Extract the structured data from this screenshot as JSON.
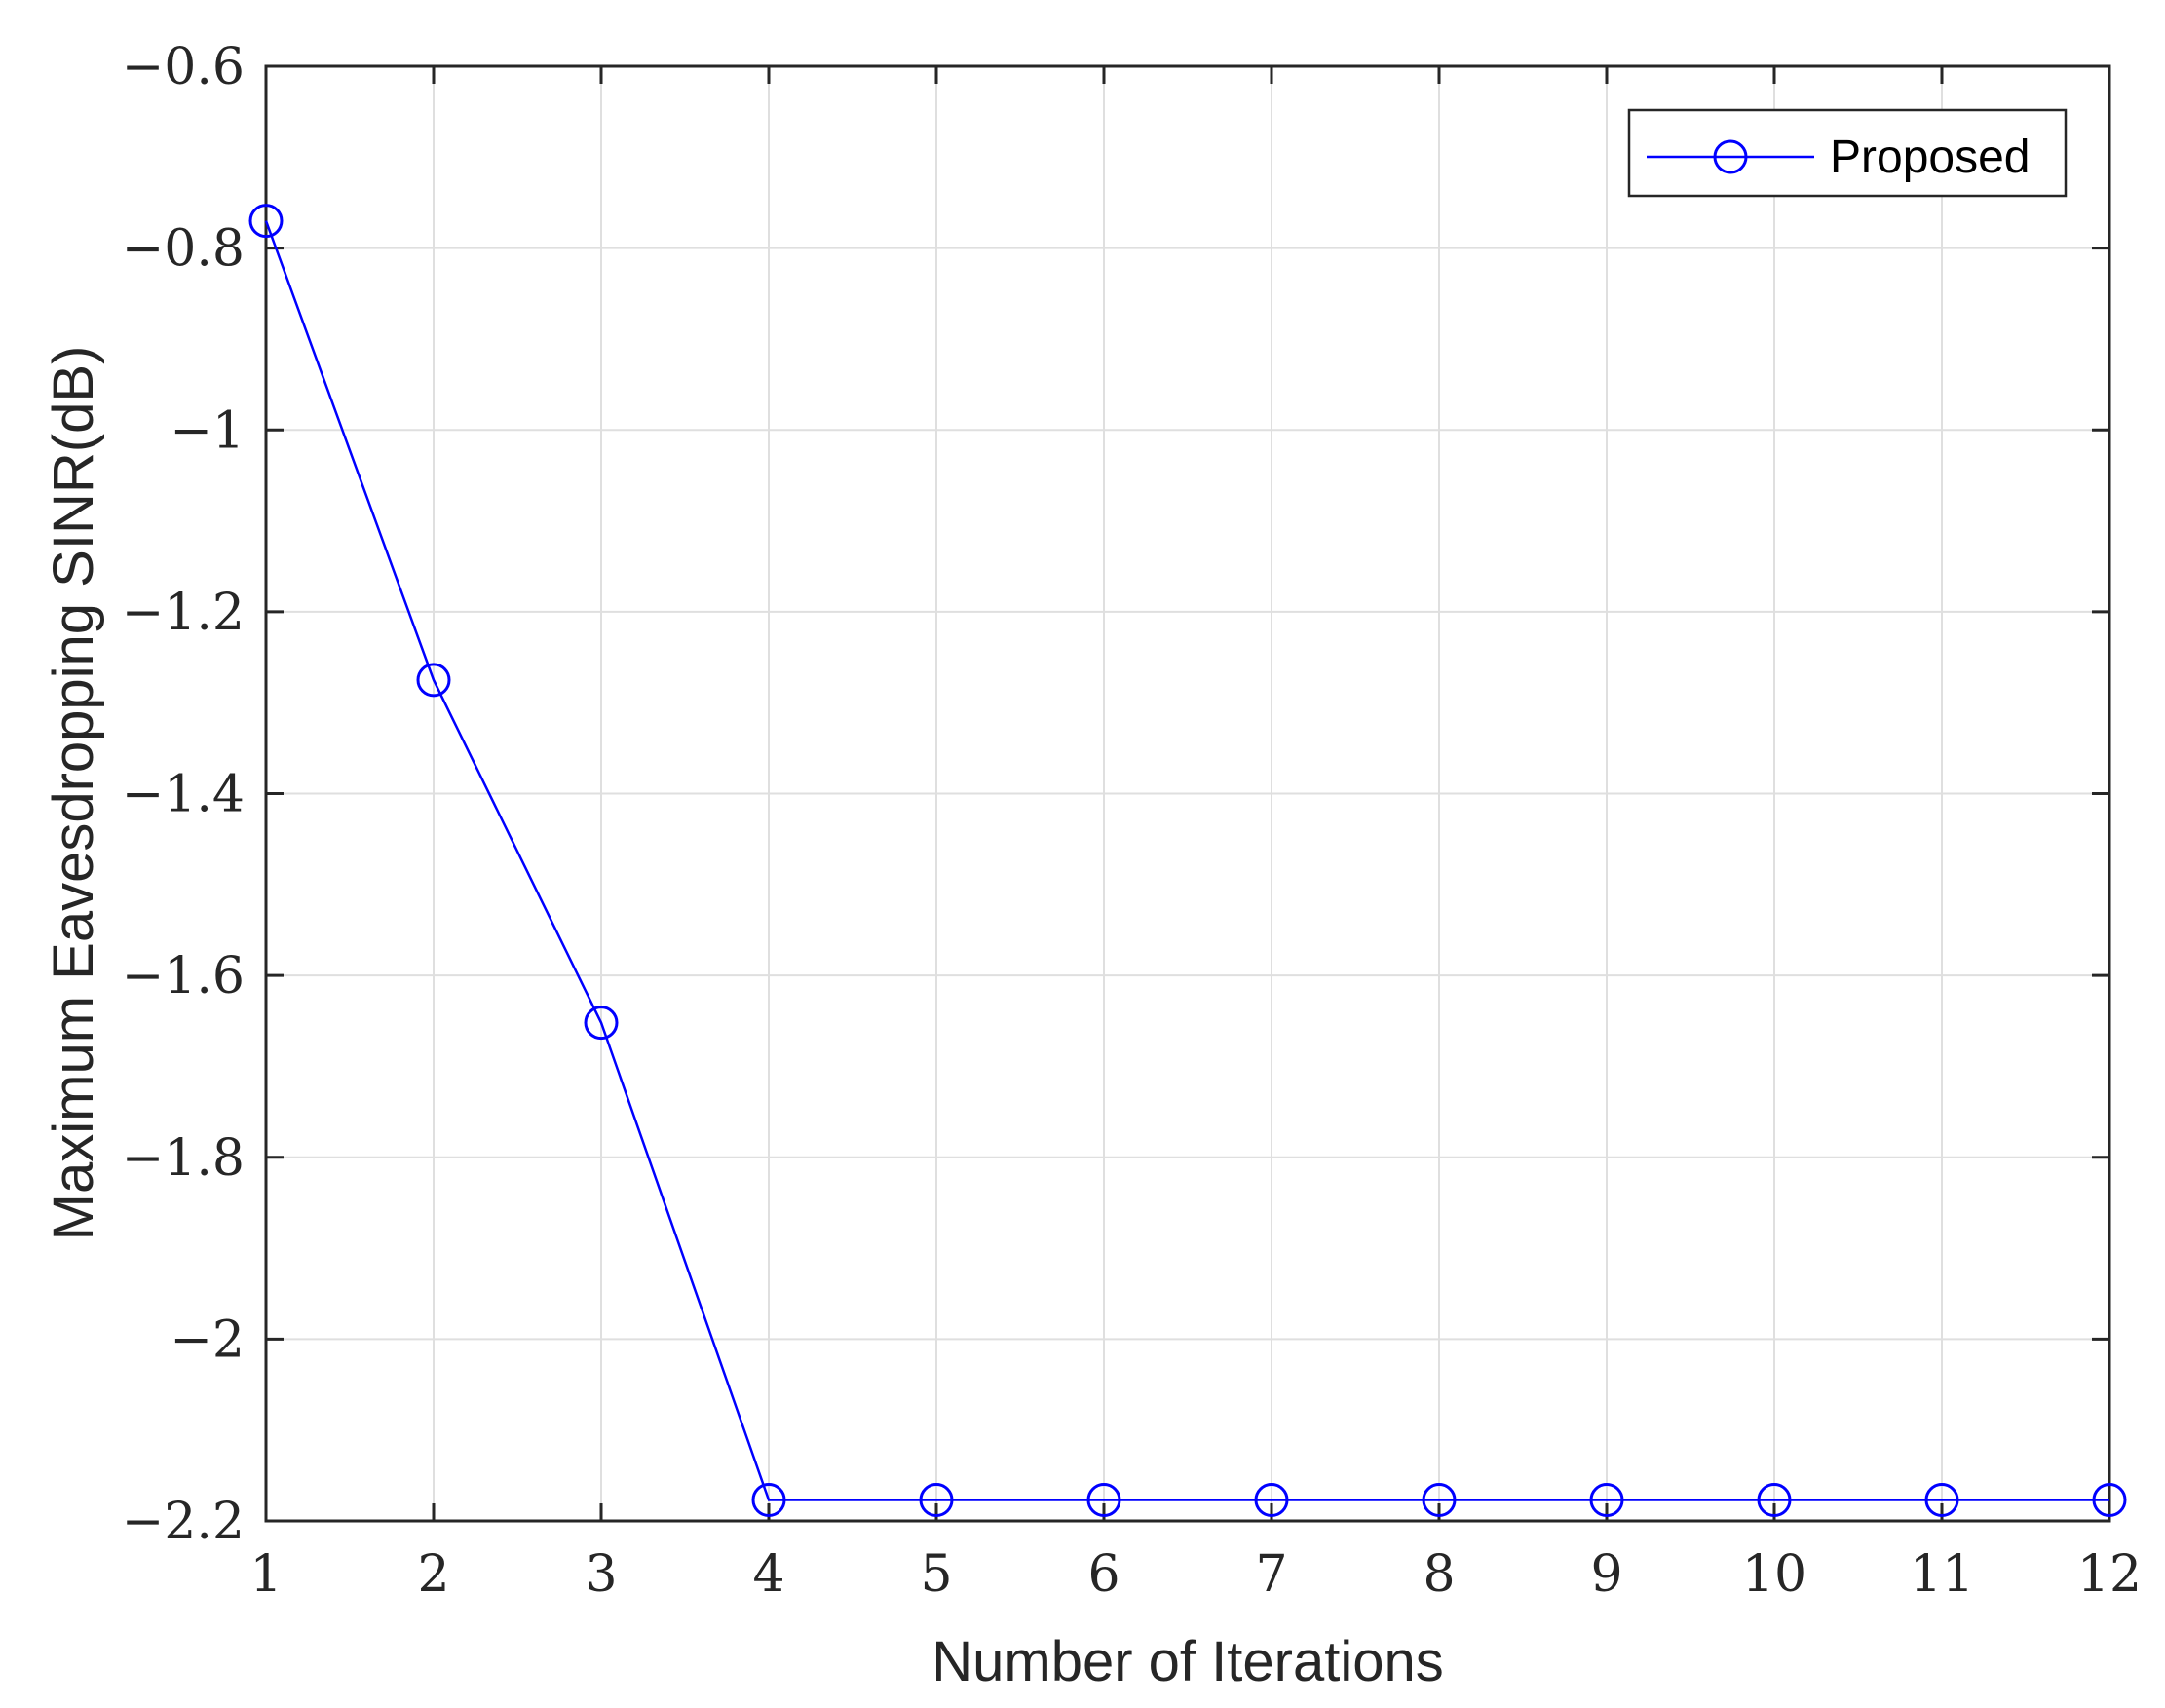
{
  "chart_data": {
    "type": "line",
    "xlabel": "Number of Iterations",
    "ylabel": "Maximum Eavesdropping SINR(dB)",
    "xlim": [
      1,
      12
    ],
    "ylim": [
      -2.2,
      -0.6
    ],
    "xticks": [
      1,
      2,
      3,
      4,
      5,
      6,
      7,
      8,
      9,
      10,
      11,
      12
    ],
    "yticks": [
      -0.6,
      -0.8,
      -1,
      -1.2,
      -1.4,
      -1.6,
      -1.8,
      -2,
      -2.2
    ],
    "ytick_labels": [
      "−0.6",
      "−0.8",
      "−1",
      "−1.2",
      "−1.4",
      "−1.6",
      "−1.8",
      "−2",
      "−2.2"
    ],
    "grid": true,
    "legend_position": "top-right",
    "series": [
      {
        "name": "Proposed",
        "color": "#0000ff",
        "marker": "circle",
        "x": [
          1,
          2,
          3,
          4,
          5,
          6,
          7,
          8,
          9,
          10,
          11,
          12
        ],
        "y": [
          -0.77,
          -1.275,
          -1.652,
          -2.177,
          -2.177,
          -2.177,
          -2.177,
          -2.177,
          -2.177,
          -2.177,
          -2.177,
          -2.177
        ]
      }
    ]
  }
}
